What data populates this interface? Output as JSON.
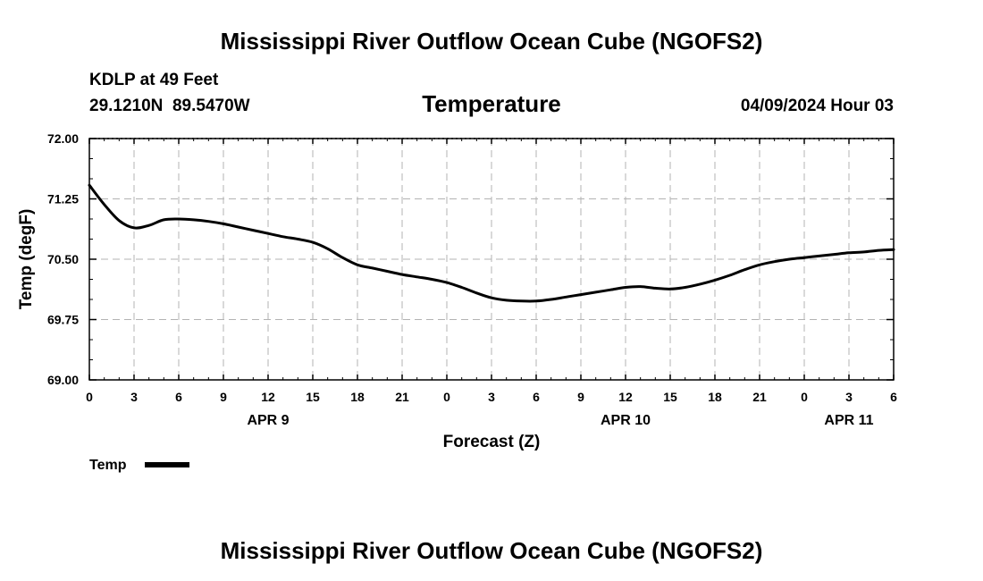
{
  "chart_data": {
    "type": "line",
    "title": "Mississippi River Outflow Ocean Cube (NGOFS2)",
    "footer_title": "Mississippi River Outflow Ocean Cube (NGOFS2)",
    "subtitle": "Temperature",
    "station": "KDLP at 49 Feet",
    "location": "29.1210N  89.5470W",
    "timestamp": "04/09/2024 Hour 03",
    "xlabel": "Forecast (Z)",
    "ylabel": "Temp (degF)",
    "xlim": [
      0,
      54
    ],
    "ylim": [
      69.0,
      72.0
    ],
    "grid": true,
    "x_ticks": [
      {
        "x": 0,
        "label": "0"
      },
      {
        "x": 3,
        "label": "3"
      },
      {
        "x": 6,
        "label": "6"
      },
      {
        "x": 9,
        "label": "9"
      },
      {
        "x": 12,
        "label": "12"
      },
      {
        "x": 15,
        "label": "15"
      },
      {
        "x": 18,
        "label": "18"
      },
      {
        "x": 21,
        "label": "21"
      },
      {
        "x": 24,
        "label": "0"
      },
      {
        "x": 27,
        "label": "3"
      },
      {
        "x": 30,
        "label": "6"
      },
      {
        "x": 33,
        "label": "9"
      },
      {
        "x": 36,
        "label": "12"
      },
      {
        "x": 39,
        "label": "15"
      },
      {
        "x": 42,
        "label": "18"
      },
      {
        "x": 45,
        "label": "21"
      },
      {
        "x": 48,
        "label": "0"
      },
      {
        "x": 51,
        "label": "3"
      },
      {
        "x": 54,
        "label": "6"
      }
    ],
    "y_ticks": [
      {
        "y": 69.0,
        "label": "69.00"
      },
      {
        "y": 69.75,
        "label": "69.75"
      },
      {
        "y": 70.5,
        "label": "70.50"
      },
      {
        "y": 71.25,
        "label": "71.25"
      },
      {
        "y": 72.0,
        "label": "72.00"
      }
    ],
    "date_labels": [
      {
        "x": 12,
        "label": "APR 9"
      },
      {
        "x": 36,
        "label": "APR 10"
      },
      {
        "x": 51,
        "label": "APR 11"
      }
    ],
    "legend": {
      "label": "Temp",
      "position": "bottom-left"
    },
    "series": [
      {
        "name": "Temp",
        "color": "#000000",
        "x": [
          0,
          1,
          2,
          3,
          4,
          5,
          6,
          7,
          8,
          9,
          10,
          11,
          12,
          13,
          14,
          15,
          16,
          17,
          18,
          19,
          20,
          21,
          22,
          23,
          24,
          25,
          26,
          27,
          28,
          29,
          30,
          31,
          32,
          33,
          34,
          35,
          36,
          37,
          38,
          39,
          40,
          41,
          42,
          43,
          44,
          45,
          46,
          47,
          48,
          49,
          50,
          51,
          52,
          53,
          54
        ],
        "values": [
          71.42,
          71.18,
          70.98,
          70.89,
          70.92,
          70.99,
          71.0,
          70.99,
          70.97,
          70.94,
          70.9,
          70.86,
          70.82,
          70.78,
          70.75,
          70.71,
          70.63,
          70.52,
          70.43,
          70.39,
          70.35,
          70.31,
          70.28,
          70.25,
          70.21,
          70.15,
          70.08,
          70.02,
          69.99,
          69.98,
          69.98,
          70.0,
          70.03,
          70.06,
          70.09,
          70.12,
          70.15,
          70.16,
          70.14,
          70.13,
          70.15,
          70.19,
          70.24,
          70.3,
          70.37,
          70.43,
          70.47,
          70.5,
          70.52,
          70.54,
          70.56,
          70.58,
          70.59,
          70.61,
          70.62
        ]
      }
    ]
  }
}
